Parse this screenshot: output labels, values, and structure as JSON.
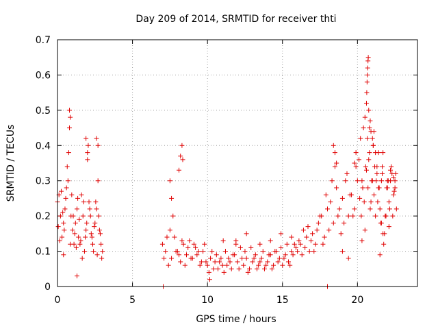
{
  "chart_data": {
    "type": "scatter",
    "title": "Day 209 of 2014, SRMTID for receiver thti",
    "xlabel": "GPS time / hours",
    "ylabel": "SRMTID / TECUs",
    "xlim": [
      0,
      24
    ],
    "ylim": [
      0,
      0.7
    ],
    "xticks": [
      "0",
      "5",
      "10",
      "15",
      "20"
    ],
    "xtick_values": [
      0,
      5,
      10,
      15,
      20
    ],
    "yticks": [
      "0",
      "0.1",
      "0.2",
      "0.3",
      "0.4",
      "0.5",
      "0.6",
      "0.7"
    ],
    "ytick_values": [
      0,
      0.1,
      0.2,
      0.3,
      0.4,
      0.5,
      0.6,
      0.7
    ],
    "grid": true,
    "marker": "+",
    "color": "#e00000",
    "series": [
      {
        "name": "SRMTID",
        "x": [
          0.0,
          0.1,
          0.2,
          0.3,
          0.4,
          0.5,
          0.6,
          0.7,
          0.8,
          0.9,
          1.0,
          1.1,
          1.2,
          1.3,
          1.4,
          1.5,
          1.6,
          1.7,
          1.8,
          1.9,
          2.0,
          2.1,
          2.2,
          2.3,
          2.4,
          2.5,
          2.6,
          2.7,
          2.8,
          2.9,
          3.0,
          0.05,
          0.15,
          0.25,
          0.35,
          0.45,
          0.55,
          0.65,
          0.75,
          0.85,
          0.95,
          1.05,
          1.15,
          1.25,
          1.35,
          1.45,
          1.55,
          1.65,
          1.75,
          1.85,
          1.95,
          2.05,
          2.15,
          2.25,
          2.35,
          2.45,
          2.55,
          2.65,
          2.75,
          2.85,
          2.95,
          0.4,
          0.8,
          0.85,
          1.3,
          1.9,
          2.0,
          2.6,
          2.7,
          7.0,
          7.2,
          7.4,
          7.6,
          7.8,
          8.0,
          8.2,
          8.4,
          8.6,
          8.8,
          9.0,
          9.2,
          9.4,
          9.6,
          9.8,
          7.1,
          7.3,
          7.5,
          7.7,
          7.9,
          8.1,
          8.3,
          8.5,
          8.7,
          8.9,
          9.1,
          9.3,
          9.5,
          9.7,
          9.9,
          7.5,
          7.6,
          8.1,
          8.2,
          8.3,
          8.35,
          10.0,
          10.2,
          10.4,
          10.6,
          10.8,
          11.0,
          11.2,
          11.4,
          11.6,
          11.8,
          12.0,
          12.2,
          12.4,
          12.6,
          12.8,
          13.0,
          13.2,
          13.4,
          13.6,
          13.8,
          14.0,
          14.2,
          14.4,
          14.6,
          14.8,
          15.0,
          15.2,
          15.4,
          15.6,
          15.8,
          10.1,
          10.3,
          10.5,
          10.7,
          10.9,
          11.1,
          11.3,
          11.5,
          11.7,
          11.9,
          12.1,
          12.3,
          12.5,
          12.7,
          12.9,
          13.1,
          13.3,
          13.5,
          13.7,
          13.9,
          14.1,
          14.3,
          14.5,
          14.7,
          14.9,
          15.1,
          15.3,
          15.5,
          15.7,
          15.9,
          10.15,
          11.05,
          11.9,
          12.6,
          13.5,
          14.2,
          14.9,
          15.6,
          16.0,
          16.2,
          16.4,
          16.6,
          16.8,
          17.0,
          17.2,
          17.4,
          17.6,
          17.8,
          18.0,
          18.2,
          18.4,
          18.6,
          18.8,
          19.0,
          19.2,
          19.4,
          19.6,
          19.8,
          20.0,
          16.1,
          16.3,
          16.5,
          16.7,
          16.9,
          17.1,
          17.3,
          17.5,
          17.7,
          17.9,
          18.1,
          18.3,
          18.5,
          18.7,
          18.9,
          19.1,
          19.3,
          19.5,
          19.7,
          19.9,
          18.4,
          18.5,
          18.6,
          19.0,
          19.4,
          19.8,
          19.9,
          20.1,
          20.2,
          20.3,
          20.4,
          20.5,
          20.6,
          20.7,
          20.8,
          20.9,
          21.0,
          21.1,
          21.2,
          21.3,
          21.4,
          21.5,
          21.6,
          21.7,
          21.8,
          21.9,
          22.0,
          22.1,
          22.2,
          22.3,
          22.4,
          22.5,
          22.6,
          20.15,
          20.25,
          20.35,
          20.45,
          20.55,
          20.65,
          20.75,
          20.85,
          20.95,
          21.05,
          21.15,
          21.25,
          21.35,
          21.45,
          21.55,
          21.65,
          21.75,
          21.85,
          21.95,
          22.05,
          22.15,
          22.25,
          22.35,
          22.45,
          22.55,
          20.6,
          20.62,
          20.64,
          20.66,
          20.68,
          20.7,
          20.72,
          20.75,
          20.8,
          20.85,
          20.9,
          21.0,
          21.05,
          21.1,
          21.2,
          21.3,
          21.4,
          21.6,
          21.65,
          22.0,
          22.2,
          22.4,
          22.5,
          20.3,
          20.5,
          21.5,
          21.7,
          22.1,
          7.05,
          18.0
        ],
        "y": [
          0.24,
          0.26,
          0.2,
          0.14,
          0.18,
          0.22,
          0.28,
          0.3,
          0.45,
          0.2,
          0.16,
          0.12,
          0.18,
          0.22,
          0.14,
          0.12,
          0.26,
          0.2,
          0.1,
          0.16,
          0.38,
          0.24,
          0.2,
          0.14,
          0.1,
          0.18,
          0.22,
          0.3,
          0.16,
          0.12,
          0.1,
          0.17,
          0.13,
          0.27,
          0.21,
          0.16,
          0.25,
          0.34,
          0.38,
          0.12,
          0.26,
          0.2,
          0.15,
          0.11,
          0.25,
          0.19,
          0.13,
          0.08,
          0.24,
          0.14,
          0.18,
          0.4,
          0.22,
          0.15,
          0.12,
          0.17,
          0.24,
          0.09,
          0.2,
          0.15,
          0.08,
          0.09,
          0.5,
          0.48,
          0.03,
          0.42,
          0.36,
          0.42,
          0.4,
          0.12,
          0.1,
          0.06,
          0.08,
          0.14,
          0.1,
          0.07,
          0.12,
          0.09,
          0.13,
          0.08,
          0.11,
          0.1,
          0.07,
          0.12,
          0.08,
          0.14,
          0.16,
          0.2,
          0.1,
          0.09,
          0.13,
          0.06,
          0.11,
          0.08,
          0.12,
          0.09,
          0.06,
          0.1,
          0.07,
          0.3,
          0.25,
          0.33,
          0.37,
          0.4,
          0.36,
          0.06,
          0.08,
          0.05,
          0.09,
          0.07,
          0.06,
          0.1,
          0.08,
          0.05,
          0.09,
          0.07,
          0.11,
          0.06,
          0.08,
          0.05,
          0.07,
          0.09,
          0.06,
          0.08,
          0.05,
          0.07,
          0.09,
          0.06,
          0.1,
          0.08,
          0.06,
          0.09,
          0.07,
          0.1,
          0.12,
          0.04,
          0.1,
          0.07,
          0.05,
          0.08,
          0.04,
          0.06,
          0.07,
          0.09,
          0.12,
          0.05,
          0.08,
          0.1,
          0.04,
          0.11,
          0.08,
          0.05,
          0.07,
          0.1,
          0.06,
          0.09,
          0.05,
          0.1,
          0.07,
          0.11,
          0.08,
          0.12,
          0.06,
          0.09,
          0.11,
          0.02,
          0.13,
          0.13,
          0.15,
          0.12,
          0.13,
          0.15,
          0.14,
          0.1,
          0.12,
          0.16,
          0.14,
          0.1,
          0.15,
          0.12,
          0.18,
          0.2,
          0.14,
          0.22,
          0.24,
          0.18,
          0.28,
          0.22,
          0.25,
          0.3,
          0.2,
          0.26,
          0.22,
          0.3,
          0.13,
          0.09,
          0.11,
          0.17,
          0.13,
          0.1,
          0.16,
          0.2,
          0.12,
          0.26,
          0.16,
          0.3,
          0.34,
          0.2,
          0.15,
          0.18,
          0.32,
          0.26,
          0.2,
          0.34,
          0.4,
          0.38,
          0.35,
          0.1,
          0.08,
          0.35,
          0.38,
          0.36,
          0.42,
          0.3,
          0.45,
          0.48,
          0.33,
          0.28,
          0.38,
          0.24,
          0.3,
          0.26,
          0.2,
          0.34,
          0.28,
          0.22,
          0.18,
          0.38,
          0.15,
          0.2,
          0.28,
          0.24,
          0.3,
          0.32,
          0.26,
          0.3,
          0.22,
          0.25,
          0.2,
          0.28,
          0.24,
          0.34,
          0.42,
          0.36,
          0.22,
          0.3,
          0.4,
          0.34,
          0.3,
          0.24,
          0.28,
          0.18,
          0.32,
          0.12,
          0.2,
          0.28,
          0.3,
          0.22,
          0.34,
          0.2,
          0.27,
          0.32,
          0.52,
          0.55,
          0.58,
          0.6,
          0.62,
          0.64,
          0.65,
          0.5,
          0.45,
          0.47,
          0.44,
          0.42,
          0.4,
          0.44,
          0.38,
          0.32,
          0.38,
          0.3,
          0.34,
          0.3,
          0.33,
          0.31,
          0.28,
          0.13,
          0.16,
          0.09,
          0.15,
          0.17,
          0.0,
          0.0
        ]
      }
    ]
  }
}
